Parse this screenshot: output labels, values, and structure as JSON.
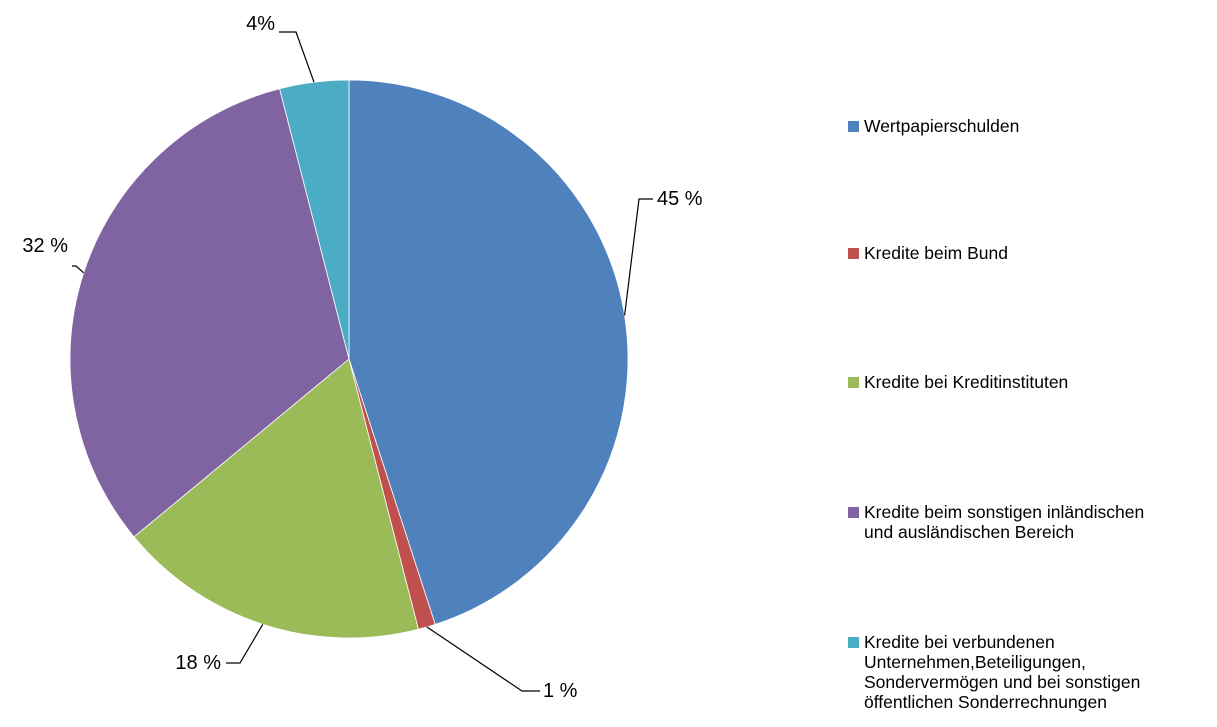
{
  "chart_data": {
    "type": "pie",
    "title": "",
    "start_angle_deg": 0,
    "direction": "clockwise",
    "legend_position": "right",
    "slices": [
      {
        "name": "Wertpapierschulden",
        "value": 45,
        "label": "45 %",
        "color": "#4F81BD"
      },
      {
        "name": "Kredite beim Bund",
        "value": 1,
        "label": "1 %",
        "color": "#C0504D"
      },
      {
        "name": "Kredite bei Kreditinstituten",
        "value": 18,
        "label": "18 %",
        "color": "#9BBB59"
      },
      {
        "name": "Kredite beim sonstigen inländischen und ausländischen Bereich",
        "value": 32,
        "label": "32 %",
        "color": "#8064A2"
      },
      {
        "name": "Kredite bei verbundenen Unternehmen,Beteiligungen, Sondervermögen und bei sonstigen öffentlichen Sonderrechnungen",
        "value": 4,
        "label": "4%",
        "color": "#4BACC6"
      }
    ]
  },
  "legend": {
    "items": [
      "Wertpapierschulden",
      "Kredite beim Bund",
      "Kredite bei Kreditinstituten",
      "Kredite beim sonstigen inländischen\nund ausländischen Bereich",
      "Kredite bei verbundenen\nUnternehmen,Beteiligungen,\nSondervermögen und bei sonstigen\nöffentlichen Sonderrechnungen"
    ]
  }
}
